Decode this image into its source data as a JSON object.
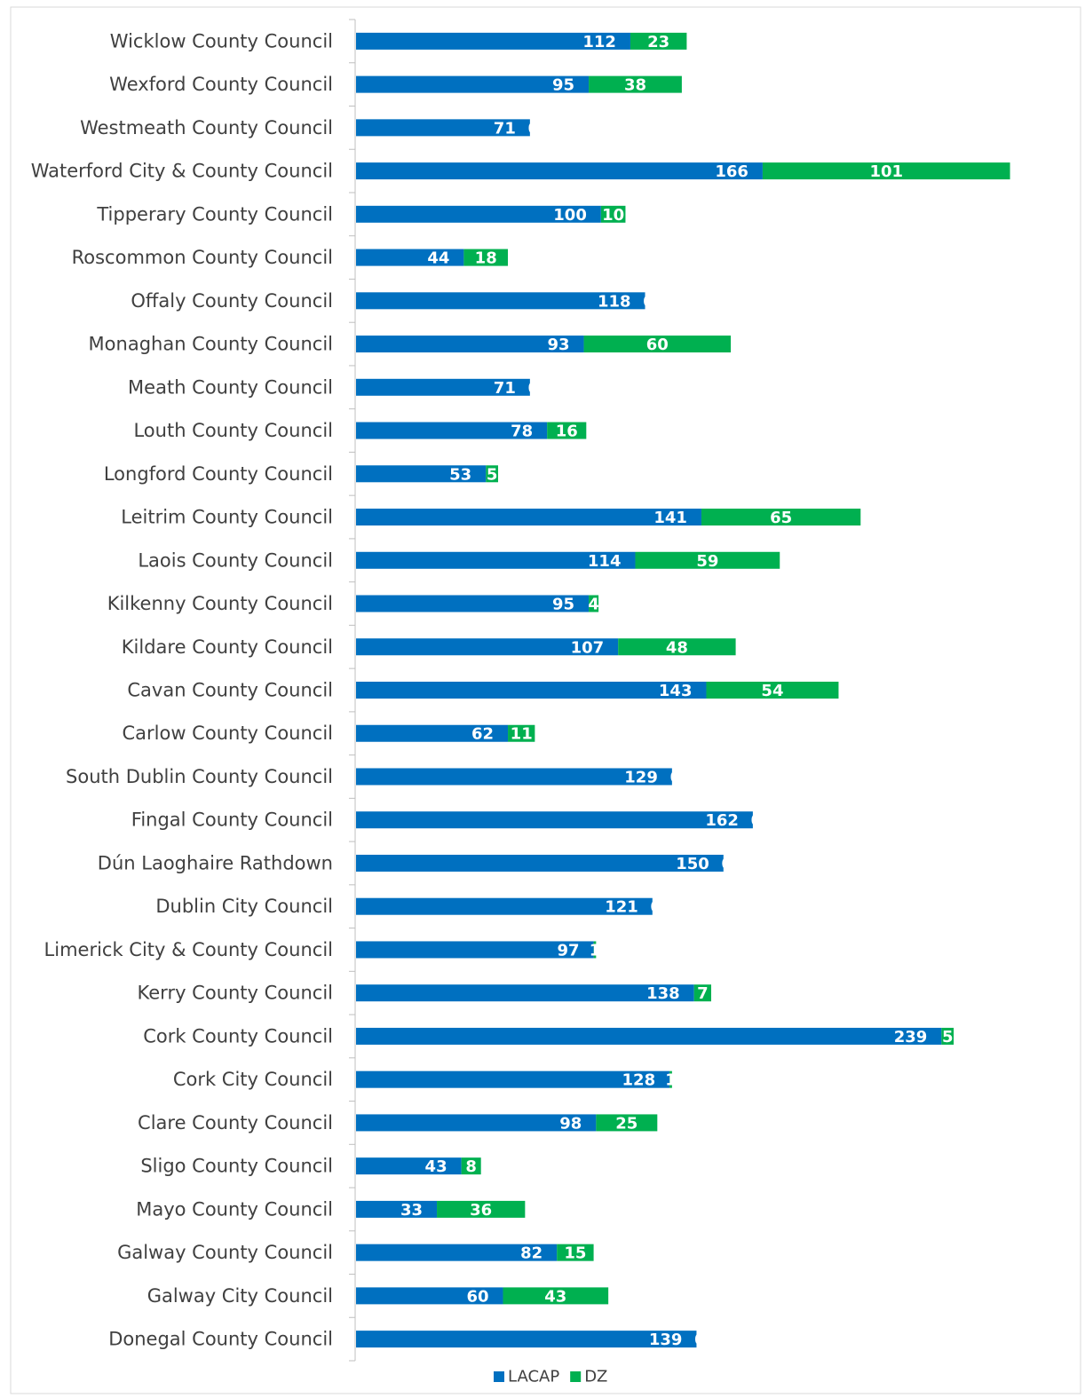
{
  "chart_data": {
    "type": "stacked_barh",
    "categories": [
      "Wicklow County Council",
      "Wexford County Council",
      "Westmeath County Council",
      "Waterford City & County Council",
      "Tipperary County Council",
      "Roscommon County Council",
      "Offaly County Council",
      "Monaghan County Council",
      "Meath County Council",
      "Louth County Council",
      "Longford County Council",
      "Leitrim County Council",
      "Laois County Council",
      "Kilkenny County Council",
      "Kildare County Council",
      "Cavan County Council",
      "Carlow County Council",
      "South Dublin County Council",
      "Fingal County Council",
      "Dún Laoghaire Rathdown",
      "Dublin City Council",
      "Limerick City & County Council",
      "Kerry County Council",
      "Cork County Council",
      "Cork City Council",
      "Clare County Council",
      "Sligo County Council",
      "Mayo County Council",
      "Galway County Council",
      "Galway City Council",
      "Donegal County Council"
    ],
    "series": [
      {
        "name": "LACAP",
        "color": "#0070C0",
        "values": [
          112,
          95,
          71,
          166,
          100,
          44,
          118,
          93,
          71,
          78,
          53,
          141,
          114,
          95,
          107,
          143,
          62,
          129,
          162,
          150,
          121,
          97,
          138,
          239,
          128,
          98,
          43,
          33,
          82,
          60,
          139
        ]
      },
      {
        "name": "DZ",
        "color": "#00B050",
        "values": [
          23,
          38,
          0,
          101,
          10,
          18,
          0,
          60,
          0,
          16,
          5,
          65,
          59,
          4,
          48,
          54,
          11,
          0,
          0,
          0,
          0,
          1,
          7,
          5,
          1,
          25,
          8,
          36,
          15,
          43,
          0
        ]
      }
    ],
    "xlim": [
      0,
      290
    ],
    "legend": "bottom"
  }
}
